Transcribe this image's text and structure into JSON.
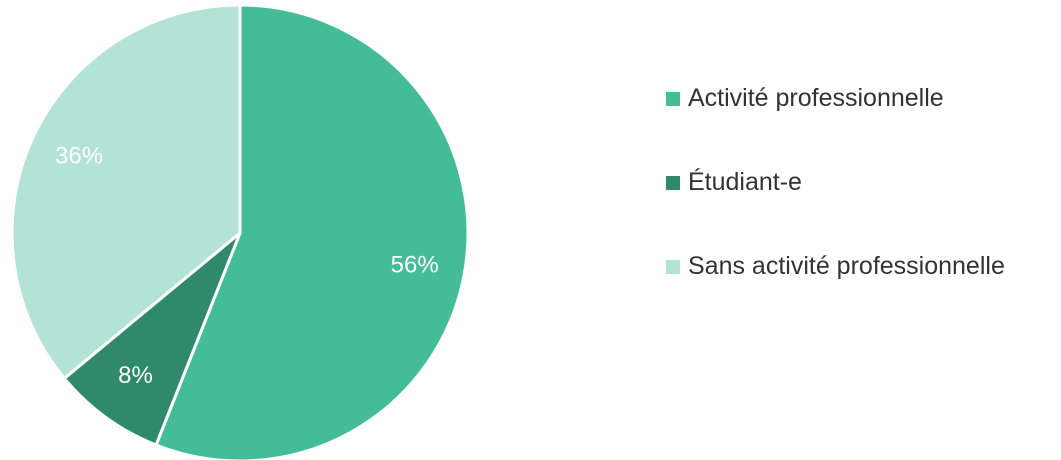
{
  "chart_data": {
    "type": "pie",
    "categories": [
      "Activité professionnelle",
      "Étudiant-e",
      "Sans activité professionnelle"
    ],
    "values": [
      56,
      8,
      36
    ],
    "value_labels": [
      "56%",
      "8%",
      "36%"
    ],
    "colors": [
      "#45bc98",
      "#2e8a6a",
      "#b3e3d4"
    ],
    "legend": "right"
  }
}
